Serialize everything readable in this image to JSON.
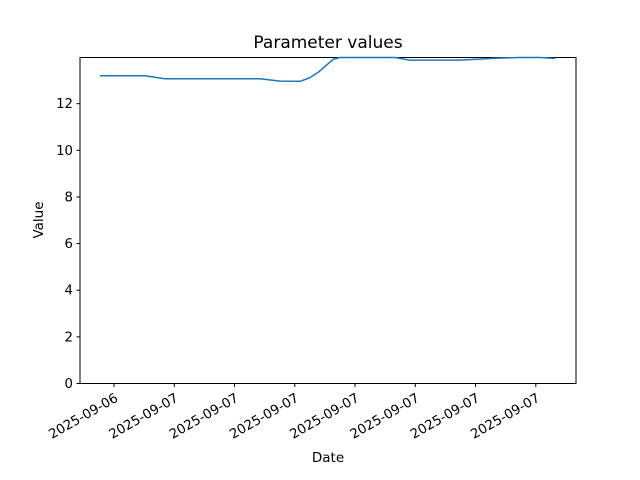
{
  "figure": {
    "background": "#ffffff"
  },
  "chart_data": {
    "type": "line",
    "title": "Parameter values",
    "xlabel": "Date",
    "ylabel": "Value",
    "ylim": [
      0,
      13.98
    ],
    "yticks": [
      0,
      2,
      4,
      6,
      8,
      10,
      12
    ],
    "xtick_rotation": 30,
    "grid": false,
    "legend_position": "none",
    "axis_color": "#000000",
    "text_color": "#000000",
    "xticks": [
      {
        "pos": 0.0685,
        "label": "2025-09-06"
      },
      {
        "pos": 0.19,
        "label": "2025-09-07"
      },
      {
        "pos": 0.3115,
        "label": "2025-09-07"
      },
      {
        "pos": 0.433,
        "label": "2025-09-07"
      },
      {
        "pos": 0.5545,
        "label": "2025-09-07"
      },
      {
        "pos": 0.676,
        "label": "2025-09-07"
      },
      {
        "pos": 0.7975,
        "label": "2025-09-07"
      },
      {
        "pos": 0.919,
        "label": "2025-09-07"
      }
    ],
    "series": [
      {
        "name": "parameter",
        "color": "#1f77b4",
        "x_unit": "fraction-of-x-axis",
        "points": [
          [
            0.04,
            13.2
          ],
          [
            0.131,
            13.2
          ],
          [
            0.171,
            13.07
          ],
          [
            0.363,
            13.07
          ],
          [
            0.403,
            12.97
          ],
          [
            0.444,
            12.96
          ],
          [
            0.462,
            13.1
          ],
          [
            0.48,
            13.34
          ],
          [
            0.51,
            13.9
          ],
          [
            0.524,
            13.98
          ],
          [
            0.635,
            13.98
          ],
          [
            0.665,
            13.87
          ],
          [
            0.766,
            13.87
          ],
          [
            0.837,
            13.95
          ],
          [
            0.887,
            13.98
          ],
          [
            0.927,
            13.98
          ],
          [
            0.958,
            13.94
          ]
        ]
      }
    ]
  }
}
